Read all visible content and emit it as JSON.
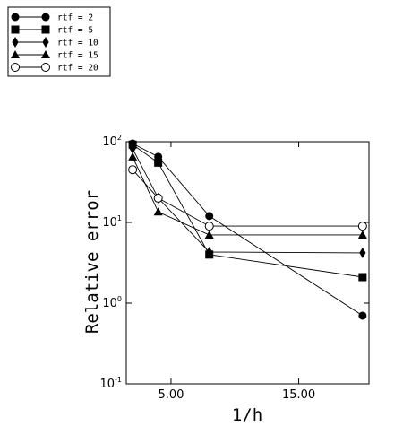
{
  "chart_data": {
    "type": "line",
    "title": "",
    "xlabel": "1/h",
    "ylabel": "Relative error",
    "x_scale": "linear",
    "y_scale": "log",
    "xlim": [
      1.5,
      20.5
    ],
    "ylim": [
      0.1,
      100
    ],
    "x_ticks": [
      5,
      15
    ],
    "x_tick_labels": [
      "5.00",
      "15.00"
    ],
    "y_ticks": [
      {
        "value": 100,
        "base": "10",
        "exp": "2"
      },
      {
        "value": 10,
        "base": "10",
        "exp": "1"
      },
      {
        "value": 1,
        "base": "10",
        "exp": "0"
      },
      {
        "value": 0.1,
        "base": "10",
        "exp": "-1"
      }
    ],
    "grid": false,
    "legend_position": "top-left outside",
    "series": [
      {
        "name": "rtf = 2",
        "marker": "circle",
        "x": [
          2,
          4,
          8,
          20
        ],
        "y": [
          95,
          65,
          12,
          0.7
        ]
      },
      {
        "name": "rtf = 5",
        "marker": "square",
        "x": [
          2,
          4,
          8,
          20
        ],
        "y": [
          92,
          55,
          4,
          2.1
        ]
      },
      {
        "name": "rtf = 10",
        "marker": "diamond",
        "x": [
          2,
          4,
          8,
          20
        ],
        "y": [
          82,
          20,
          4.3,
          4.2
        ]
      },
      {
        "name": "rtf = 15",
        "marker": "triangle",
        "x": [
          2,
          4,
          8,
          20
        ],
        "y": [
          65,
          13.5,
          7,
          7
        ]
      },
      {
        "name": "rtf = 20",
        "marker": "open-circle",
        "x": [
          2,
          4,
          8,
          20
        ],
        "y": [
          45,
          20,
          9,
          9
        ]
      }
    ]
  }
}
